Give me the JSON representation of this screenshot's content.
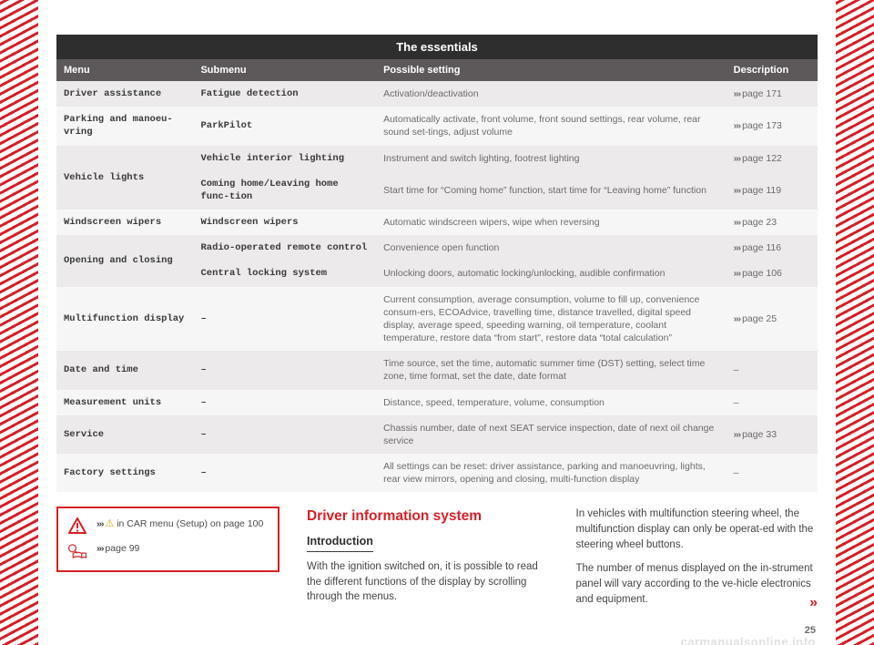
{
  "title_bar": "The essentials",
  "columns": [
    "Menu",
    "Submenu",
    "Possible setting",
    "Description"
  ],
  "widths": [
    "18%",
    "24%",
    "46%",
    "12%"
  ],
  "rows": [
    {
      "stripe": "odd",
      "menu_span": 1,
      "menu": "Driver assistance",
      "submenu": "Fatigue detection",
      "setting": "Activation/deactivation",
      "desc": "››› page 171"
    },
    {
      "stripe": "even",
      "menu_span": 1,
      "menu": "Parking and manoeu-\nvring",
      "submenu": "ParkPilot",
      "setting": "Automatically activate, front volume, front sound settings, rear volume, rear sound set-tings, adjust volume",
      "desc": "››› page 173"
    },
    {
      "stripe": "odd",
      "menu_span": 2,
      "menu": "Vehicle lights",
      "submenu": "Vehicle interior lighting",
      "setting": "Instrument and switch lighting, footrest lighting",
      "desc": "››› page 122"
    },
    {
      "stripe": "odd",
      "menu": null,
      "submenu": "Coming home/Leaving home func-tion",
      "setting": "Start time for “Coming home” function, start time for “Leaving home” function",
      "desc": "››› page 119"
    },
    {
      "stripe": "even",
      "menu_span": 1,
      "menu": "Windscreen wipers",
      "submenu": "Windscreen wipers",
      "setting": "Automatic windscreen wipers, wipe when reversing",
      "desc": "››› page 23"
    },
    {
      "stripe": "odd",
      "menu_span": 2,
      "menu": "Opening and closing",
      "submenu": "Radio-operated remote control",
      "setting": "Convenience open function",
      "desc": "››› page 116"
    },
    {
      "stripe": "odd",
      "menu": null,
      "submenu": "Central locking system",
      "setting": "Unlocking doors, automatic locking/unlocking, audible confirmation",
      "desc": "››› page 106"
    },
    {
      "stripe": "even",
      "menu_span": 1,
      "menu": "Multifunction display",
      "submenu": "–",
      "setting": "Current consumption, average consumption, volume to fill up, convenience consum-ers, ECOAdvice, travelling time, distance travelled, digital speed display, average speed, speeding warning, oil temperature, coolant temperature, restore data “from start”, restore data “total calculation”",
      "desc": "››› page 25"
    },
    {
      "stripe": "odd",
      "menu_span": 1,
      "menu": "Date and time",
      "submenu": "–",
      "setting": "Time source, set the time, automatic summer time (DST) setting, select time zone, time format, set the date, date format",
      "desc": "–"
    },
    {
      "stripe": "even",
      "menu_span": 1,
      "menu": "Measurement units",
      "submenu": "–",
      "setting": "Distance, speed, temperature, volume, consumption",
      "desc": "–"
    },
    {
      "stripe": "odd",
      "menu_span": 1,
      "menu": "Service",
      "submenu": "–",
      "setting": "Chassis number, date of next SEAT service inspection, date of next oil change service",
      "desc": "››› page 33"
    },
    {
      "stripe": "even",
      "menu_span": 1,
      "menu": "Factory settings",
      "submenu": "–",
      "setting": "All settings can be reset: driver assistance, parking and manoeuvring, lights, rear view mirrors, opening and closing, multi-function display",
      "desc": "–"
    }
  ],
  "notes": [
    {
      "icon": "warning",
      "text_pre": "››› ",
      "warn": "⚠",
      "text_post": " in CAR menu (Setup) on page 100"
    },
    {
      "icon": "book",
      "text_pre": "››› ",
      "warn": "",
      "text_post": "page 99"
    }
  ],
  "cols_text": {
    "heading": "Driver information system",
    "subheading": "Introduction",
    "p1": "With the ignition switched on, it is possible to read the different functions of the display by scrolling through the menus.",
    "p2": "In vehicles with multifunction steering wheel, the multifunction display can only be operat-ed with the steering wheel buttons.",
    "p3a": "The number of menus displayed on the in-strument panel will vary according to the ve-hicle electronics and equipment.",
    "cont": "»"
  },
  "page_number": "25",
  "watermark": "carmanualsonline.info",
  "colors": {
    "brand_red": "#d61f26",
    "header_dark": "#2e2e2e",
    "th_bg": "#5d595a",
    "row_odd": "#eceaea",
    "row_even": "#f7f6f6"
  }
}
